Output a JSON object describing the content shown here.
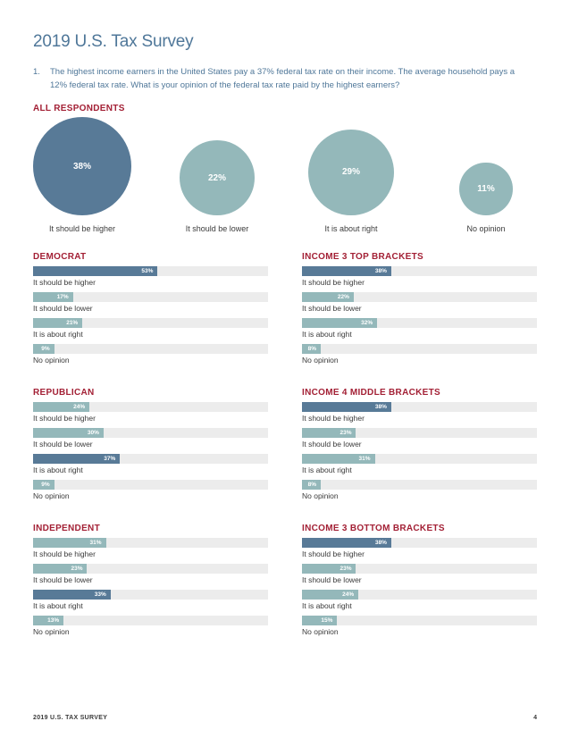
{
  "page": {
    "title": "2019 U.S. Tax Survey",
    "question_number": "1.",
    "question_text": "The highest income earners in the United States pay a 37% federal tax rate on their income. The average household pays a 12% federal tax rate. What is your opinion of the federal tax rate paid by the highest earners?",
    "footer_left": "2019 U.S. TAX SURVEY",
    "footer_right": "4"
  },
  "colors": {
    "dark_bar": "#587a97",
    "light_bar": "#94b8ba",
    "track": "#ececec",
    "heading_red": "#a32035",
    "title_blue": "#4f7799"
  },
  "chart_data": [
    {
      "type": "bubble",
      "title": "ALL RESPONDENTS",
      "categories": [
        "It should be higher",
        "It should be lower",
        "It is about right",
        "No opinion"
      ],
      "value_labels": [
        "38%",
        "22%",
        "29%",
        "11%"
      ],
      "values": [
        38,
        22,
        29,
        11
      ],
      "highlight": [
        true,
        false,
        false,
        false
      ]
    },
    {
      "type": "bar",
      "title": "DEMOCRAT",
      "categories": [
        "It should be higher",
        "It should be lower",
        "It is about right",
        "No opinion"
      ],
      "value_labels": [
        "53%",
        "17%",
        "21%",
        "9%"
      ],
      "values": [
        53,
        17,
        21,
        9
      ],
      "highlight": [
        true,
        false,
        false,
        false
      ]
    },
    {
      "type": "bar",
      "title": "INCOME 3 TOP BRACKETS",
      "categories": [
        "It should be higher",
        "It should be lower",
        "It is about right",
        "No opinion"
      ],
      "value_labels": [
        "38%",
        "22%",
        "32%",
        "8%"
      ],
      "values": [
        38,
        22,
        32,
        8
      ],
      "highlight": [
        true,
        false,
        false,
        false
      ]
    },
    {
      "type": "bar",
      "title": "REPUBLICAN",
      "categories": [
        "It should be higher",
        "It should be lower",
        "It is about right",
        "No opinion"
      ],
      "value_labels": [
        "24%",
        "30%",
        "37%",
        "9%"
      ],
      "values": [
        24,
        30,
        37,
        9
      ],
      "highlight": [
        false,
        false,
        true,
        false
      ]
    },
    {
      "type": "bar",
      "title": "INCOME 4 MIDDLE BRACKETS",
      "categories": [
        "It should be higher",
        "It should be lower",
        "It is about right",
        "No opinion"
      ],
      "value_labels": [
        "38%",
        "23%",
        "31%",
        "8%"
      ],
      "values": [
        38,
        23,
        31,
        8
      ],
      "highlight": [
        true,
        false,
        false,
        false
      ]
    },
    {
      "type": "bar",
      "title": "INDEPENDENT",
      "categories": [
        "It should be higher",
        "It should be lower",
        "It is about right",
        "No opinion"
      ],
      "value_labels": [
        "31%",
        "23%",
        "33%",
        "13%"
      ],
      "values": [
        31,
        23,
        33,
        13
      ],
      "highlight": [
        false,
        false,
        true,
        false
      ]
    },
    {
      "type": "bar",
      "title": "INCOME 3 BOTTOM BRACKETS",
      "categories": [
        "It should be higher",
        "It should be lower",
        "It is about right",
        "No opinion"
      ],
      "value_labels": [
        "38%",
        "23%",
        "24%",
        "15%"
      ],
      "values": [
        38,
        23,
        24,
        15
      ],
      "highlight": [
        true,
        false,
        false,
        false
      ]
    }
  ]
}
